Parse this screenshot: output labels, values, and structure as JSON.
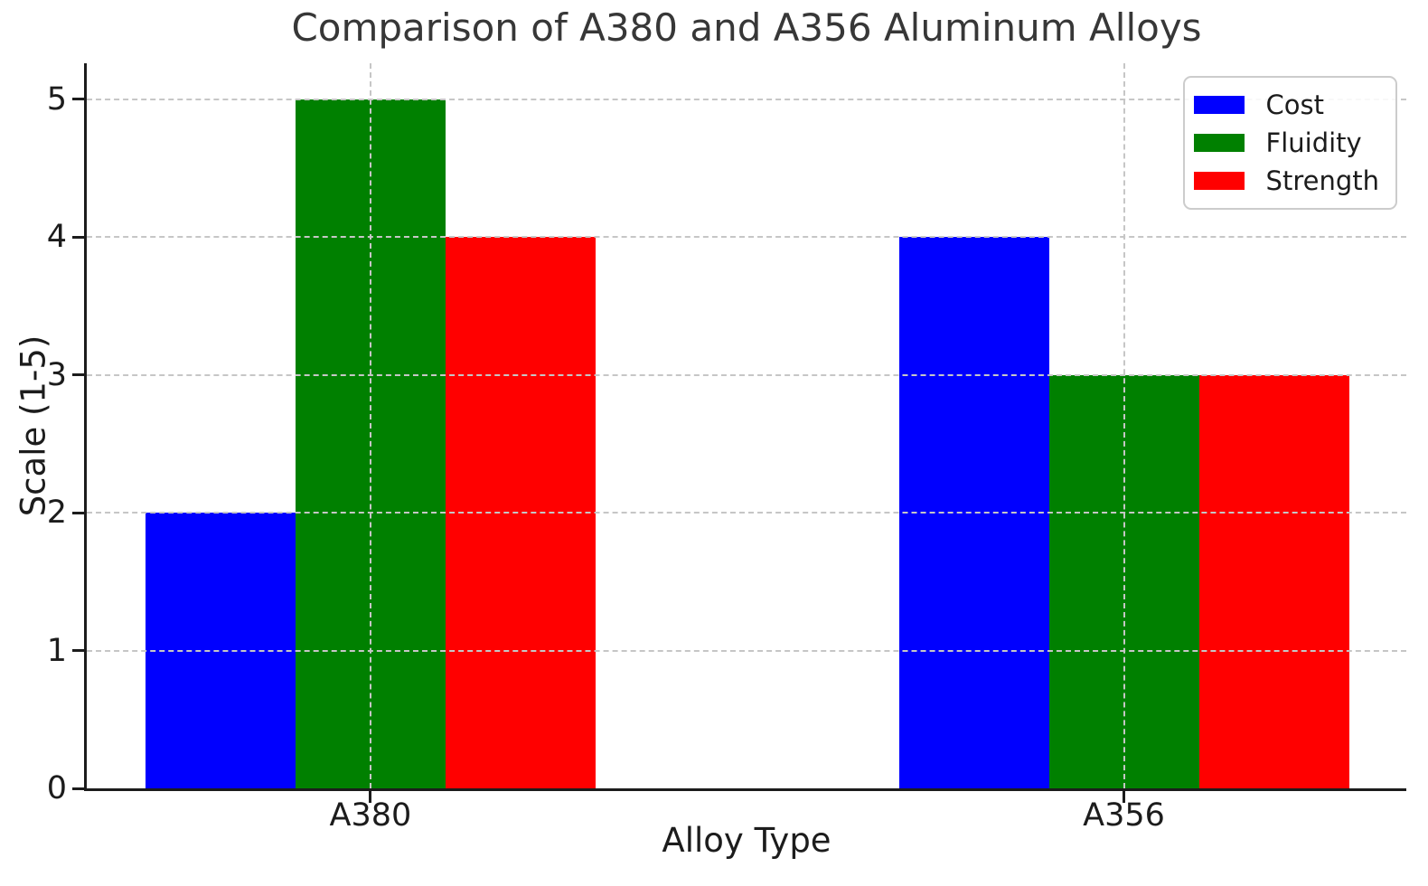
{
  "chart_data": {
    "type": "bar",
    "title": "Comparison of A380 and A356 Aluminum Alloys",
    "xlabel": "Alloy Type",
    "ylabel": "Scale (1-5)",
    "categories": [
      "A380",
      "A356"
    ],
    "series": [
      {
        "name": "Cost",
        "color": "#0000ff",
        "values": [
          2,
          4
        ]
      },
      {
        "name": "Fluidity",
        "color": "#008000",
        "values": [
          5,
          3
        ]
      },
      {
        "name": "Strength",
        "color": "#ff0000",
        "values": [
          4,
          3
        ]
      }
    ],
    "yticks": [
      0,
      1,
      2,
      3,
      4,
      5
    ],
    "ylim": [
      0,
      5.26
    ],
    "grid": true,
    "grid_style": "dashed",
    "grid_above_bars": true,
    "legend_position": "upper right",
    "background_color": "#ffffff",
    "text_color": "#1c1c1c"
  }
}
